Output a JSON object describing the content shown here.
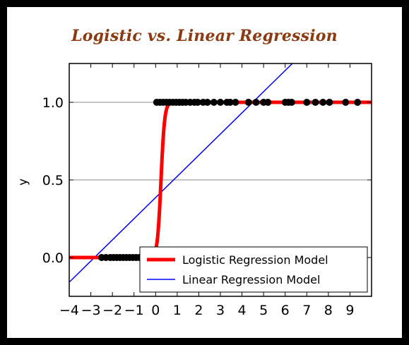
{
  "colors": {
    "frame": "#000000",
    "title": "#8b3a12",
    "logistic": "#ff0000",
    "linear": "#0000ff",
    "points": "#000000",
    "gridline": "#888888"
  },
  "chart_data": {
    "type": "scatter",
    "title": "Logistic vs. Linear Regression",
    "xlabel": "",
    "ylabel": "y",
    "xlim": [
      -4,
      10
    ],
    "ylim": [
      -0.25,
      1.25
    ],
    "x_ticks": [
      -4,
      -3,
      -2,
      -1,
      0,
      1,
      2,
      3,
      4,
      5,
      6,
      7,
      8,
      9
    ],
    "x_tick_labels": [
      "−4",
      "−3",
      "−2",
      "−1",
      "0",
      "1",
      "2",
      "3",
      "4",
      "5",
      "6",
      "7",
      "8",
      "9"
    ],
    "y_ticks": [
      0.0,
      0.5,
      1.0
    ],
    "y_tick_labels": [
      "0.0",
      "0.5",
      "1.0"
    ],
    "gridlines_y": [
      0.0,
      0.5,
      1.0
    ],
    "legend_position": "lower-right",
    "series": [
      {
        "name": "Logistic Regression Model",
        "kind": "line",
        "model": "logistic",
        "midpoint": 0.25,
        "steepness": 12,
        "x_range": [
          -4,
          10
        ]
      },
      {
        "name": "Linear Regression Model",
        "kind": "line",
        "model": "linear",
        "slope": 0.1364,
        "intercept": 0.3864,
        "x_range": [
          -4,
          10
        ]
      },
      {
        "kind": "scatter",
        "points_y0": [
          -2.5,
          -2.3,
          -2.1,
          -1.95,
          -1.8,
          -1.65,
          -1.5,
          -1.35,
          -1.2,
          -1.05,
          -0.9,
          -0.75,
          -0.6,
          -0.45,
          -0.3,
          -0.15,
          -0.05,
          0.1,
          0.25,
          0.4,
          0.55
        ],
        "points_y1": [
          0.05,
          0.2,
          0.35,
          0.5,
          0.65,
          0.8,
          0.95,
          1.1,
          1.25,
          1.4,
          1.6,
          1.8,
          1.95,
          2.2,
          2.4,
          2.7,
          3.0,
          3.3,
          3.45,
          3.7,
          4.3,
          4.65,
          5.0,
          5.2,
          6.0,
          6.15,
          6.3,
          7.0,
          7.4,
          7.75,
          8.05,
          8.8,
          9.35
        ]
      }
    ]
  }
}
